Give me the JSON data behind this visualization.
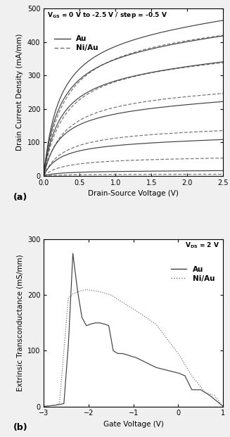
{
  "fig_width": 3.27,
  "fig_height": 6.21,
  "dpi": 100,
  "bg_color": "#f0f0f0",
  "plot_a": {
    "title_text": "V",
    "title_sub": "GS",
    "title_rest": " = 0 V to -2.5 V / step = -0.5 V",
    "xlabel": "Drain-Source Voltage (V)",
    "ylabel": "Drain Current Density (mA/mm)",
    "xlim": [
      0.0,
      2.5
    ],
    "ylim": [
      0,
      500
    ],
    "xticks": [
      0.0,
      0.5,
      1.0,
      1.5,
      2.0,
      2.5
    ],
    "yticks": [
      0,
      100,
      200,
      300,
      400,
      500
    ],
    "label_a": "(a)",
    "legend_Au": "Au",
    "legend_NiAu": "Ni/Au",
    "Au_color": "#404040",
    "NiAu_color": "#707070",
    "Au_sat": [
      450,
      405,
      330,
      215,
      105,
      15
    ],
    "NiAu_sat": [
      435,
      350,
      255,
      140,
      55,
      5
    ],
    "vgs_steps": [
      0.0,
      -0.5,
      -1.0,
      -1.5,
      -2.0,
      -2.5
    ]
  },
  "plot_b": {
    "xlabel": "Gate Voltage (V)",
    "ylabel": "Extrinsic Transconductance (mS/mm)",
    "xlim": [
      -3,
      1
    ],
    "ylim": [
      0,
      300
    ],
    "xticks": [
      -3,
      -2,
      -1,
      0,
      1
    ],
    "yticks": [
      0,
      100,
      200,
      300
    ],
    "label_b": "(b)",
    "legend_Au": "Au",
    "legend_NiAu": "Ni/Au",
    "Au_color": "#404040",
    "NiAu_color": "#707070",
    "Au_gm": {
      "x": [
        -3.0,
        -2.75,
        -2.55,
        -2.45,
        -2.35,
        -2.25,
        -2.15,
        -2.05,
        -1.95,
        -1.85,
        -1.75,
        -1.65,
        -1.55,
        -1.45,
        -1.35,
        -1.25,
        -1.15,
        -1.05,
        -0.95,
        -0.5,
        -0.1,
        0.0,
        0.15,
        0.3,
        0.5,
        0.7,
        1.0
      ],
      "y": [
        0,
        2,
        5,
        110,
        275,
        210,
        160,
        145,
        148,
        150,
        150,
        148,
        145,
        100,
        95,
        95,
        93,
        90,
        88,
        70,
        62,
        60,
        55,
        30,
        30,
        20,
        0
      ]
    },
    "NiAu_gm": {
      "x": [
        -3.0,
        -2.75,
        -2.65,
        -2.55,
        -2.45,
        -2.35,
        -2.2,
        -2.05,
        -1.9,
        -1.7,
        -1.5,
        -1.0,
        -0.5,
        0.0,
        0.3,
        0.6,
        0.8,
        1.0
      ],
      "y": [
        0,
        2,
        5,
        100,
        195,
        202,
        207,
        210,
        208,
        205,
        200,
        175,
        148,
        95,
        55,
        25,
        20,
        0
      ]
    }
  }
}
